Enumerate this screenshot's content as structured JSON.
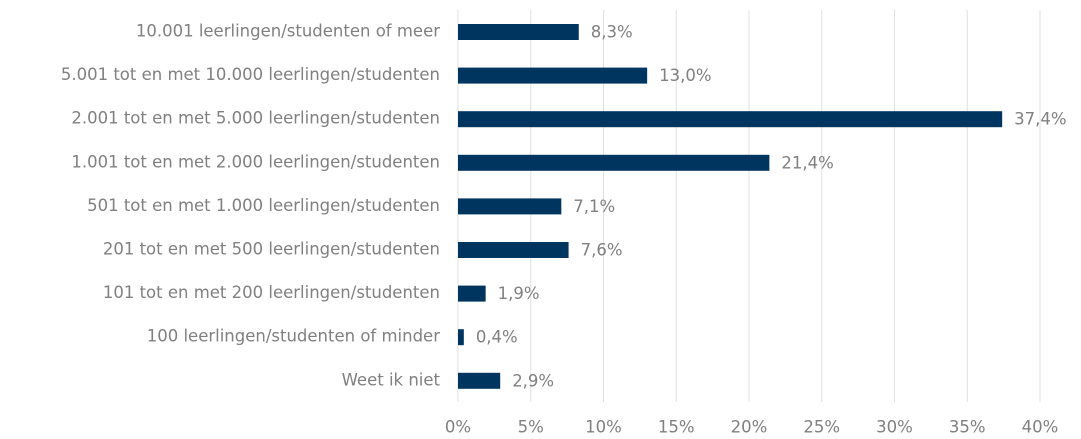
{
  "chart_data": {
    "type": "bar",
    "orientation": "horizontal",
    "categories": [
      "10.001 leerlingen/studenten of meer",
      "5.001 tot en met 10.000 leerlingen/studenten",
      "2.001 tot en met 5.000 leerlingen/studenten",
      "1.001 tot en met 2.000 leerlingen/studenten",
      "501 tot en met 1.000 leerlingen/studenten",
      "201 tot en met 500 leerlingen/studenten",
      "101 tot en met 200 leerlingen/studenten",
      "100 leerlingen/studenten of minder",
      "Weet ik niet"
    ],
    "values": [
      8.3,
      13.0,
      37.4,
      21.4,
      7.1,
      7.6,
      1.9,
      0.4,
      2.9
    ],
    "value_labels": [
      "8,3%",
      "13,0%",
      "37,4%",
      "21,4%",
      "7,1%",
      "7,6%",
      "1,9%",
      "0,4%",
      "2,9%"
    ],
    "color": "#003560",
    "xlim": [
      0,
      40
    ],
    "xticks": [
      {
        "value": 0,
        "label": "0%"
      },
      {
        "value": 5,
        "label": "5%"
      },
      {
        "value": 10,
        "label": "10%"
      },
      {
        "value": 15,
        "label": "15%"
      },
      {
        "value": 20,
        "label": "20%"
      },
      {
        "value": 25,
        "label": "25%"
      },
      {
        "value": 30,
        "label": "30%"
      },
      {
        "value": 35,
        "label": "35%"
      },
      {
        "value": 40,
        "label": "40%"
      }
    ],
    "grid": true
  }
}
